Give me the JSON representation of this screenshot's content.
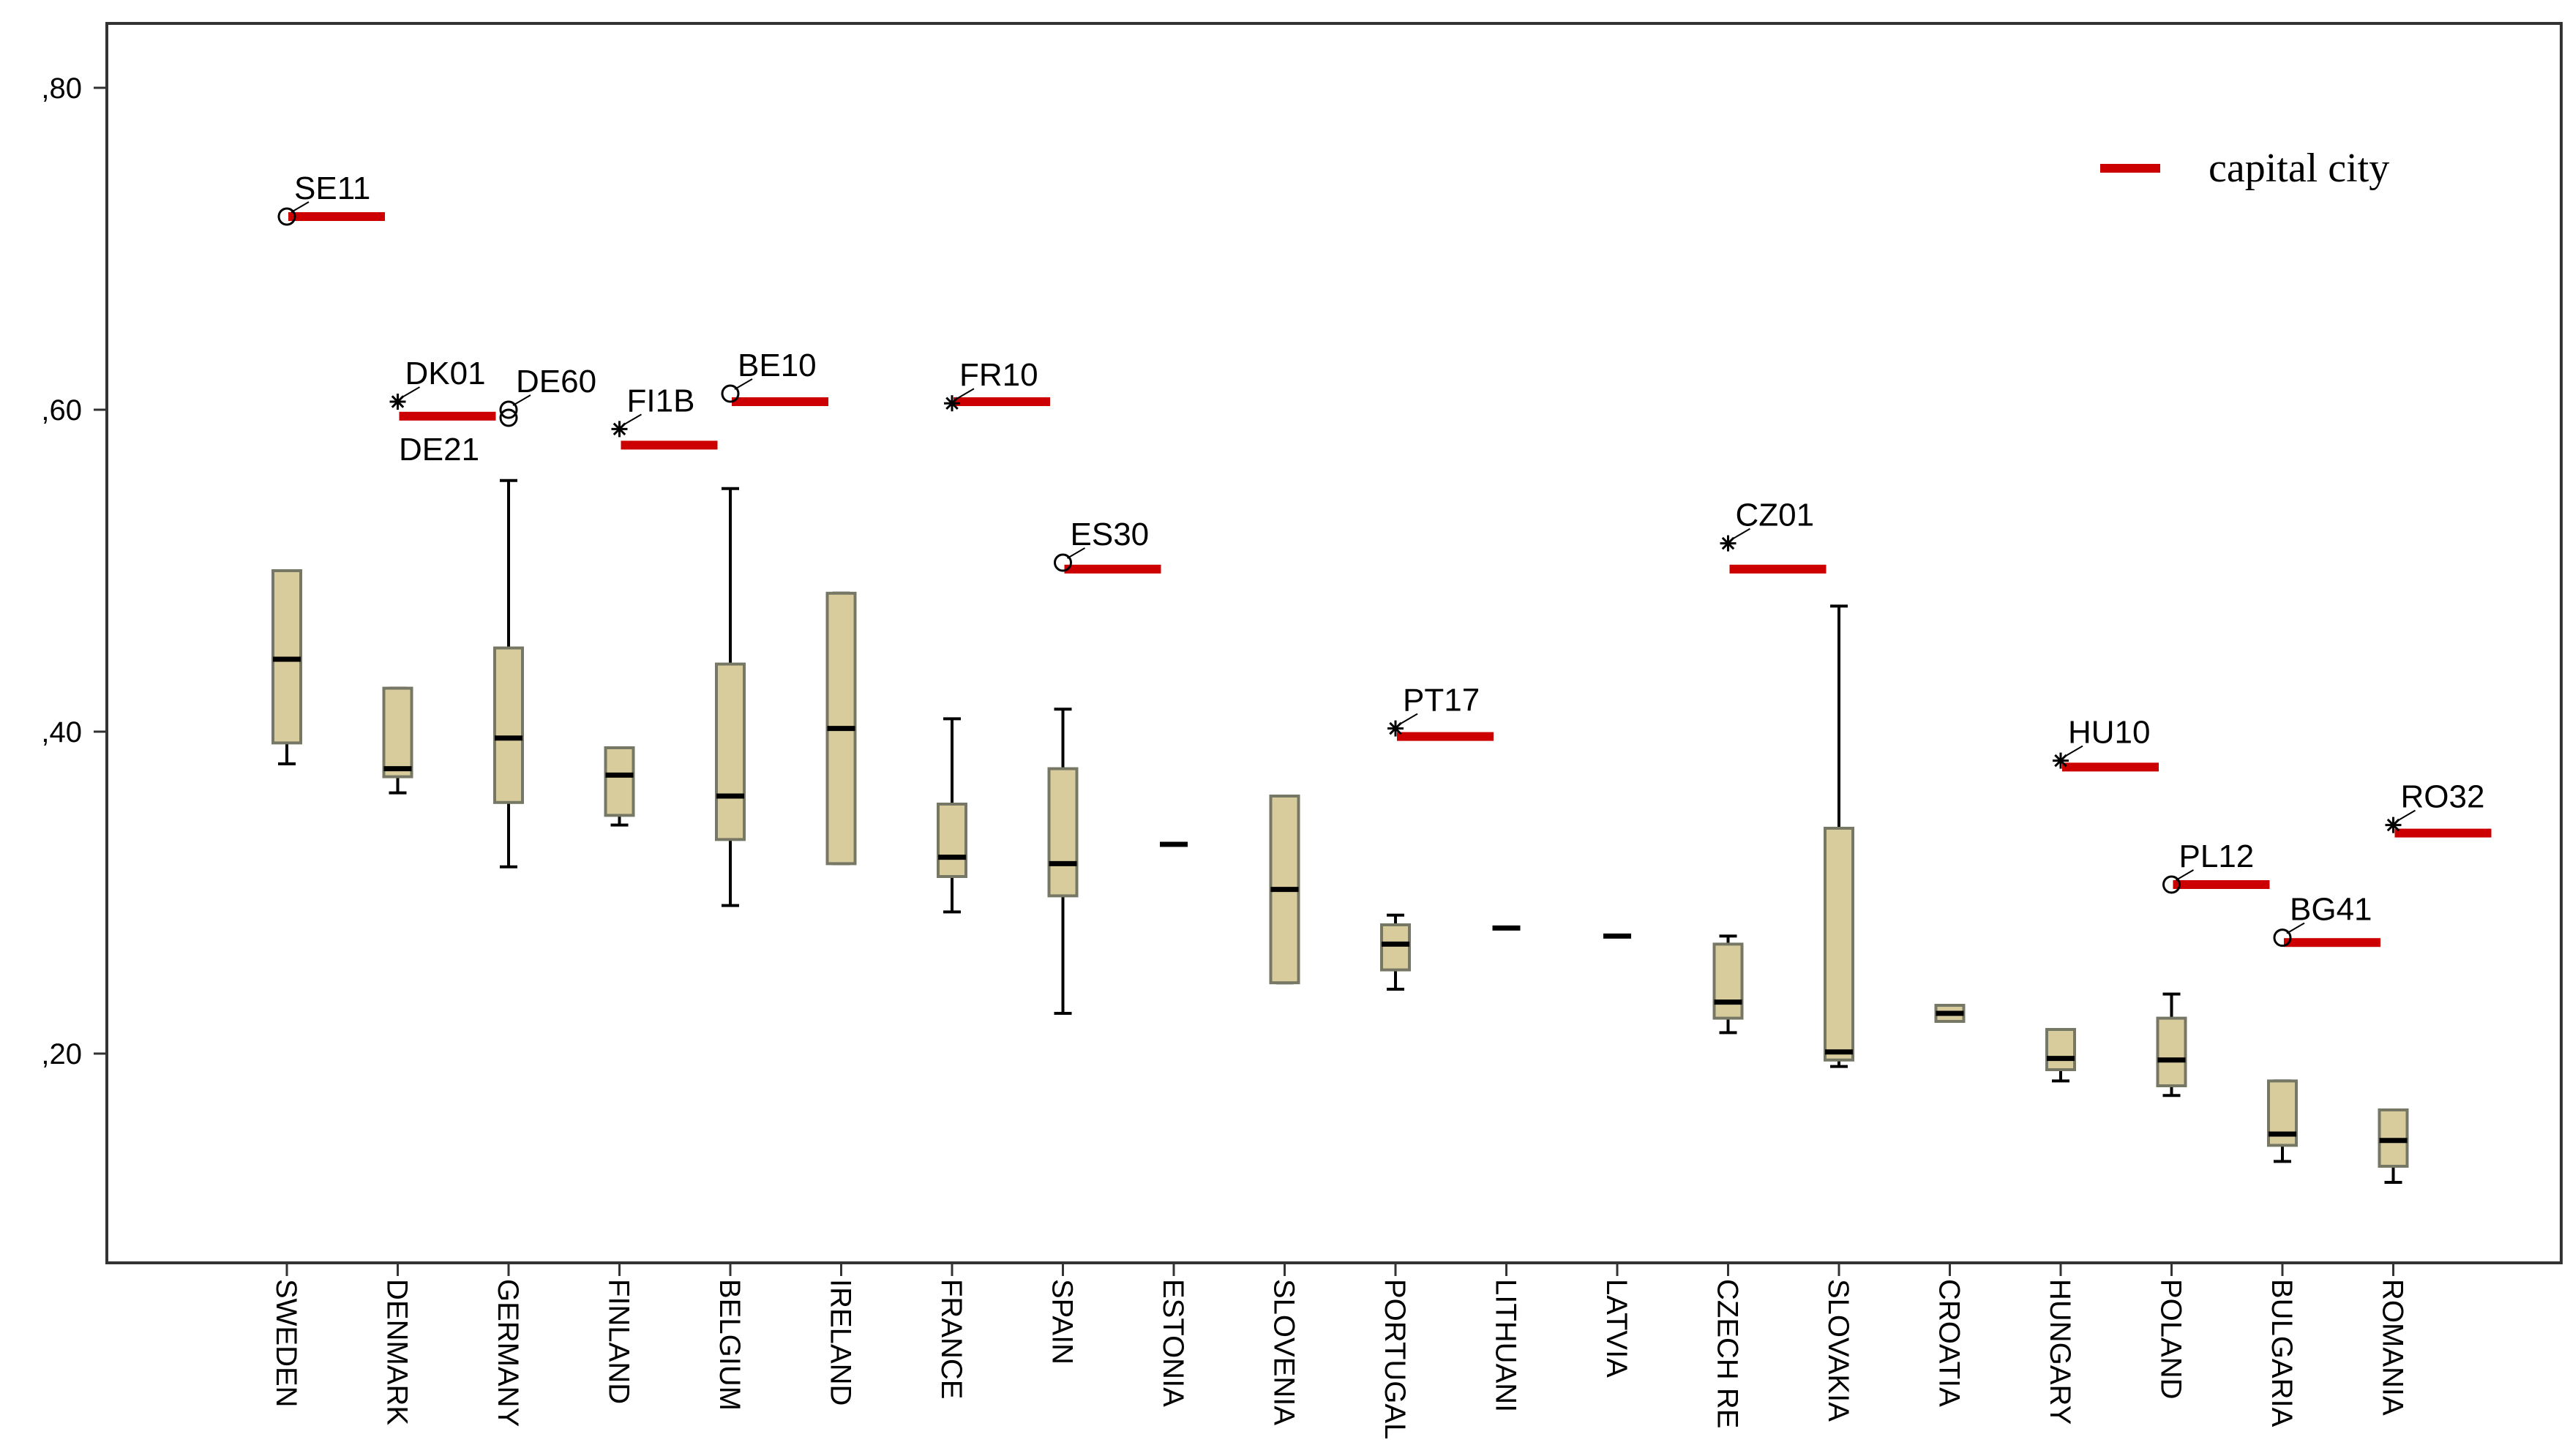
{
  "chart_data": {
    "type": "boxplot",
    "title": "",
    "xlabel": "",
    "ylabel": "",
    "ylim": [
      0.07,
      0.84
    ],
    "yticks": [
      0.2,
      0.4,
      0.6,
      0.8
    ],
    "ytick_labels": [
      ",20",
      ",40",
      ",60",
      ",80"
    ],
    "legend": {
      "label": "capital city",
      "color": "#cc0000",
      "position": "top-right"
    },
    "colors": {
      "box_fill": "#d8cc9c",
      "box_stroke": "#777766",
      "whisker": "#000000",
      "capital": "#cc0000",
      "axis": "#333333"
    },
    "categories": [
      {
        "name": "SWEDEN",
        "whisker_low": 0.38,
        "q1": 0.393,
        "median": 0.445,
        "q3": 0.5,
        "whisker_high": 0.5,
        "capital": 0.72,
        "outliers": [
          {
            "label": "SE11",
            "value": 0.72,
            "marker": "circle"
          }
        ]
      },
      {
        "name": "DENMARK",
        "whisker_low": 0.362,
        "q1": 0.372,
        "median": 0.377,
        "q3": 0.427,
        "whisker_high": 0.427,
        "capital": 0.596,
        "outliers": [
          {
            "label": "DK01",
            "value": 0.605,
            "marker": "star"
          }
        ]
      },
      {
        "name": "GERMANY",
        "whisker_low": 0.316,
        "q1": 0.356,
        "median": 0.396,
        "q3": 0.452,
        "whisker_high": 0.556,
        "capital": null,
        "outliers": [
          {
            "label": "DE60",
            "value": 0.6,
            "marker": "circle"
          },
          {
            "label": "DE21",
            "value": 0.595,
            "marker": "circle"
          }
        ]
      },
      {
        "name": "FINLAND",
        "whisker_low": 0.342,
        "q1": 0.348,
        "median": 0.373,
        "q3": 0.39,
        "whisker_high": 0.39,
        "capital": 0.578,
        "outliers": [
          {
            "label": "FI1B",
            "value": 0.588,
            "marker": "star"
          }
        ]
      },
      {
        "name": "BELGIUM",
        "whisker_low": 0.292,
        "q1": 0.333,
        "median": 0.36,
        "q3": 0.442,
        "whisker_high": 0.551,
        "capital": 0.605,
        "outliers": [
          {
            "label": "BE10",
            "value": 0.61,
            "marker": "circle"
          }
        ]
      },
      {
        "name": "IRELAND",
        "whisker_low": 0.318,
        "q1": 0.318,
        "median": 0.402,
        "q3": 0.486,
        "whisker_high": 0.486,
        "capital": null,
        "outliers": []
      },
      {
        "name": "FRANCE",
        "whisker_low": 0.288,
        "q1": 0.31,
        "median": 0.322,
        "q3": 0.355,
        "whisker_high": 0.408,
        "capital": 0.605,
        "outliers": [
          {
            "label": "FR10",
            "value": 0.604,
            "marker": "star"
          }
        ]
      },
      {
        "name": "SPAIN",
        "whisker_low": 0.225,
        "q1": 0.298,
        "median": 0.318,
        "q3": 0.377,
        "whisker_high": 0.414,
        "capital": 0.501,
        "outliers": [
          {
            "label": "ES30",
            "value": 0.505,
            "marker": "circle"
          }
        ]
      },
      {
        "name": "ESTONIA",
        "whisker_low": 0.33,
        "q1": 0.33,
        "median": 0.33,
        "q3": 0.33,
        "whisker_high": 0.33,
        "capital": null,
        "outliers": []
      },
      {
        "name": "SLOVENIA",
        "whisker_low": 0.244,
        "q1": 0.244,
        "median": 0.302,
        "q3": 0.36,
        "whisker_high": 0.36,
        "capital": null,
        "outliers": []
      },
      {
        "name": "PORTUGAL",
        "whisker_low": 0.24,
        "q1": 0.252,
        "median": 0.268,
        "q3": 0.28,
        "whisker_high": 0.286,
        "capital": 0.397,
        "outliers": [
          {
            "label": "PT17",
            "value": 0.402,
            "marker": "star"
          }
        ]
      },
      {
        "name": "LITHUANI",
        "whisker_low": 0.278,
        "q1": 0.278,
        "median": 0.278,
        "q3": 0.278,
        "whisker_high": 0.278,
        "capital": null,
        "outliers": []
      },
      {
        "name": "LATVIA",
        "whisker_low": 0.273,
        "q1": 0.273,
        "median": 0.273,
        "q3": 0.273,
        "whisker_high": 0.273,
        "capital": null,
        "outliers": []
      },
      {
        "name": "CZECH RE",
        "whisker_low": 0.213,
        "q1": 0.222,
        "median": 0.232,
        "q3": 0.268,
        "whisker_high": 0.273,
        "capital": 0.501,
        "outliers": [
          {
            "label": "CZ01",
            "value": 0.517,
            "marker": "star"
          }
        ]
      },
      {
        "name": "SLOVAKIA",
        "whisker_low": 0.192,
        "q1": 0.196,
        "median": 0.201,
        "q3": 0.34,
        "whisker_high": 0.478,
        "capital": null,
        "outliers": []
      },
      {
        "name": "CROATIA",
        "whisker_low": 0.22,
        "q1": 0.22,
        "median": 0.225,
        "q3": 0.23,
        "whisker_high": 0.23,
        "capital": null,
        "outliers": []
      },
      {
        "name": "HUNGARY",
        "whisker_low": 0.183,
        "q1": 0.19,
        "median": 0.197,
        "q3": 0.215,
        "whisker_high": 0.215,
        "capital": 0.378,
        "outliers": [
          {
            "label": "HU10",
            "value": 0.382,
            "marker": "star"
          }
        ]
      },
      {
        "name": "POLAND",
        "whisker_low": 0.174,
        "q1": 0.18,
        "median": 0.196,
        "q3": 0.222,
        "whisker_high": 0.237,
        "capital": 0.305,
        "outliers": [
          {
            "label": "PL12",
            "value": 0.305,
            "marker": "circle"
          }
        ]
      },
      {
        "name": "BULGARIA",
        "whisker_low": 0.133,
        "q1": 0.143,
        "median": 0.15,
        "q3": 0.183,
        "whisker_high": 0.183,
        "capital": 0.269,
        "outliers": [
          {
            "label": "BG41",
            "value": 0.272,
            "marker": "circle"
          }
        ]
      },
      {
        "name": "ROMANIA",
        "whisker_low": 0.12,
        "q1": 0.13,
        "median": 0.146,
        "q3": 0.165,
        "whisker_high": 0.165,
        "capital": 0.337,
        "outliers": [
          {
            "label": "RO32",
            "value": 0.342,
            "marker": "star"
          }
        ]
      }
    ]
  }
}
